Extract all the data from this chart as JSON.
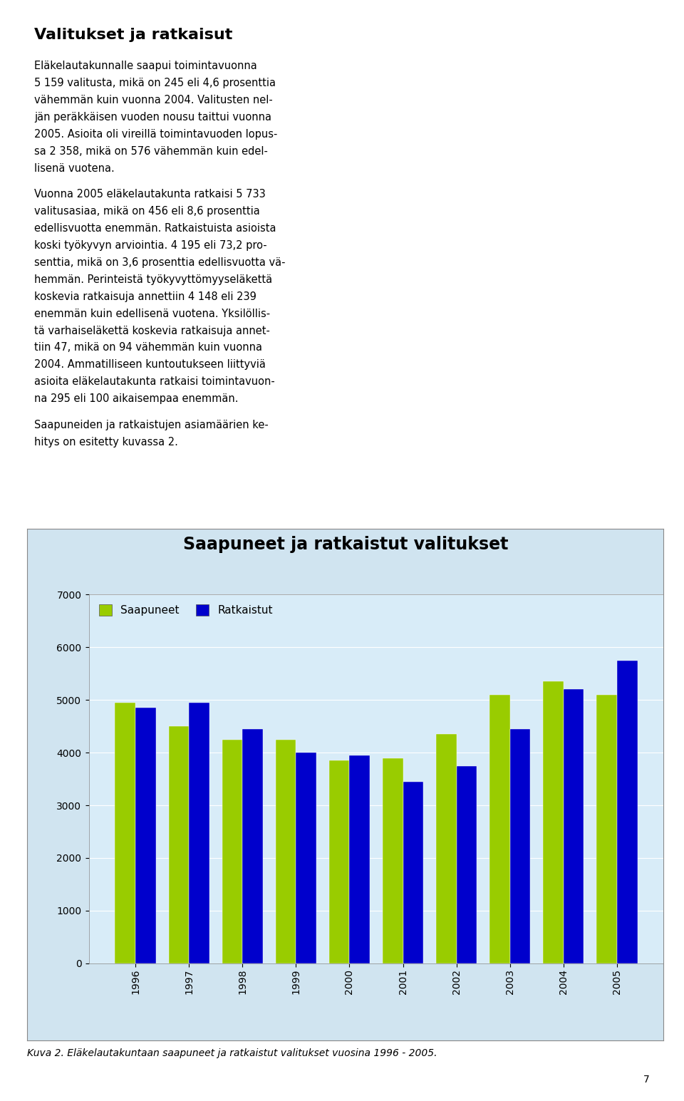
{
  "title": "Saapuneet ja ratkaistut valitukset",
  "years": [
    "1996",
    "1997",
    "1998",
    "1999",
    "2000",
    "2001",
    "2002",
    "2003",
    "2004",
    "2005"
  ],
  "saapuneet": [
    4950,
    4500,
    4250,
    4250,
    3850,
    3900,
    4350,
    5100,
    5350,
    5100
  ],
  "ratkaistut": [
    4850,
    4950,
    4450,
    4000,
    3950,
    3450,
    3750,
    4450,
    5200,
    5750
  ],
  "color_saapuneet": "#99CC00",
  "color_ratkaistut": "#0000CC",
  "ylim_min": 0,
  "ylim_max": 7000,
  "yticks": [
    0,
    1000,
    2000,
    3000,
    4000,
    5000,
    6000,
    7000
  ],
  "legend_saapuneet": "Saapuneet",
  "legend_ratkaistut": "Ratkaistut",
  "caption": "Kuva 2. Eläkelautakuntaan saapuneet ja ratkaistut valitukset vuosina 1996 - 2005.",
  "outer_bg_color": "#D0E4F0",
  "plot_area_bg": "#D8ECF8",
  "bar_width": 0.38,
  "title_fontsize": 17,
  "axis_fontsize": 10,
  "legend_fontsize": 11,
  "caption_fontsize": 10,
  "heading": "Valitukset ja ratkaisut",
  "heading_fontsize": 16,
  "body_text_fontsize": 10.5,
  "page_number": "7",
  "paragraph1": "Eläkelautakunnalle saapui toimintavuonna 5 159 valitusta, mikä on 245 eli 4,6 prosenttia vähemmän kuin vuonna 2004. Valitusten neljän peräkkäisen vuoden nousu taittui vuonna 2005. Asioita oli vireillä toimintavuoden lopussa 2 358, mikä on 576 vähemmän kuin edellisä vuotena.",
  "paragraph2": "Vuonna 2005 eläkelautakunta ratkaisi 5 733 valitusasiaa, mikä on 456 eli 8,6 prosenttia edellisvuotta enemmän. Ratkaistuista asioista koski työkyvyn arviointia. 4 195 eli 73,2 prosenttia, mikä on 3,6 prosenttia edellisvuotta vähemmän. Perinteistä työkyvyttömyyseläkettä koskevia ratkaisuja annettiin 4 148 eli 239 enemmän kuin edellisenä vuotena. Yksillölli-stä varhaiseläkettä koskevia ratkaisuja annettiin 47, mikä on 94 vähemmän kuin vuonna 2004. Ammatilliseen kuntoutukseen liittyviä asioita eläkelautakunta ratkaisi toimintavuonna 295 eli 100 aikaisempaa enemmän.",
  "paragraph3": "Saapuneiden ja ratkaistujen asiammäärien kehitys on esitetty kuvassa 2."
}
